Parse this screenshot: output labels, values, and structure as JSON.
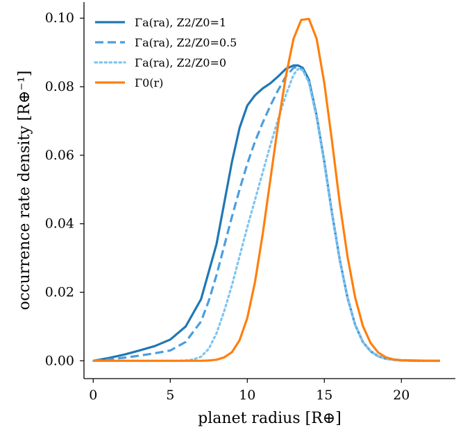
{
  "chart_data": {
    "type": "line",
    "xlabel": "planet radius [R⊕]",
    "ylabel": "occurrence rate density [R⊕⁻¹]",
    "xlim": [
      -0.6,
      23.5
    ],
    "ylim": [
      -0.0052,
      0.1047
    ],
    "xticks": [
      0,
      5,
      10,
      15,
      20
    ],
    "xtick_labels": [
      "0",
      "5",
      "10",
      "15",
      "20"
    ],
    "yticks": [
      0.0,
      0.02,
      0.04,
      0.06,
      0.08,
      0.1
    ],
    "ytick_labels": [
      "0.00",
      "0.02",
      "0.04",
      "0.06",
      "0.08",
      "0.10"
    ],
    "grid": false,
    "legend_position": "upper-left",
    "series": [
      {
        "name": "Γa(ra), Z2/Z0=1",
        "color": "#1f77b4",
        "style": "solid",
        "x": [
          0,
          1,
          2,
          3,
          4,
          5,
          6,
          7,
          8,
          8.5,
          9,
          9.5,
          10,
          10.5,
          11,
          11.5,
          12,
          12.5,
          13,
          13.3,
          13.6,
          14,
          14.5,
          15,
          15.5,
          16,
          16.5,
          17,
          17.5,
          18,
          18.5,
          19,
          19.5,
          20,
          21,
          22,
          22.5
        ],
        "y": [
          0.0,
          0.0008,
          0.0018,
          0.003,
          0.0043,
          0.0062,
          0.01,
          0.018,
          0.034,
          0.046,
          0.058,
          0.068,
          0.0745,
          0.0775,
          0.0795,
          0.081,
          0.083,
          0.0852,
          0.0862,
          0.0862,
          0.0855,
          0.082,
          0.0715,
          0.058,
          0.043,
          0.0295,
          0.0185,
          0.0105,
          0.0055,
          0.0028,
          0.0013,
          0.0006,
          0.0003,
          0.0001,
          0.0,
          0.0,
          0.0
        ]
      },
      {
        "name": "Γa(ra), Z2/Z0=0.5",
        "color": "#4a9ee0",
        "style": "dashed",
        "x": [
          0,
          1,
          2,
          3,
          4,
          5,
          6,
          7,
          7.5,
          8,
          8.5,
          9,
          9.5,
          10,
          10.5,
          11,
          11.5,
          12,
          12.5,
          13,
          13.3,
          13.6,
          14,
          14.5,
          15,
          15.5,
          16,
          16.5,
          17,
          17.5,
          18,
          18.5,
          19,
          19.5,
          20,
          21,
          22,
          22.5
        ],
        "y": [
          0.0,
          0.0004,
          0.0009,
          0.0015,
          0.0022,
          0.003,
          0.0055,
          0.0115,
          0.0175,
          0.025,
          0.0335,
          0.042,
          0.05,
          0.0575,
          0.064,
          0.0695,
          0.0745,
          0.079,
          0.083,
          0.0855,
          0.0858,
          0.085,
          0.0815,
          0.0712,
          0.0578,
          0.0428,
          0.0294,
          0.0184,
          0.0105,
          0.0055,
          0.0028,
          0.0013,
          0.0006,
          0.0003,
          0.0001,
          0.0,
          0.0,
          0.0
        ]
      },
      {
        "name": "Γa(ra), Z2/Z0=0",
        "color": "#7fc4f0",
        "style": "dotted",
        "x": [
          0,
          1,
          2,
          3,
          4,
          5,
          5.5,
          6,
          6.5,
          7,
          7.5,
          8,
          8.5,
          9,
          9.5,
          10,
          10.5,
          11,
          11.5,
          12,
          12.5,
          13,
          13.3,
          13.6,
          14,
          14.5,
          15,
          15.5,
          16,
          16.5,
          17,
          17.5,
          18,
          18.5,
          19,
          19.5,
          20,
          21,
          22,
          22.5
        ],
        "y": [
          0,
          0,
          0,
          0,
          0,
          0,
          0,
          0.0001,
          0.0004,
          0.0012,
          0.0035,
          0.008,
          0.0145,
          0.022,
          0.0305,
          0.039,
          0.047,
          0.055,
          0.063,
          0.0705,
          0.0775,
          0.0835,
          0.0852,
          0.0848,
          0.0812,
          0.071,
          0.0576,
          0.0427,
          0.0293,
          0.0184,
          0.0105,
          0.0055,
          0.0028,
          0.0013,
          0.0006,
          0.0003,
          0.0001,
          0.0,
          0.0,
          0.0
        ]
      },
      {
        "name": "Γ0(r)",
        "color": "#ff7f0e",
        "style": "solid",
        "x": [
          0,
          5,
          6,
          7,
          7.5,
          8,
          8.5,
          9,
          9.5,
          10,
          10.5,
          11,
          11.5,
          12,
          12.5,
          13,
          13.5,
          14,
          14.5,
          15,
          15.5,
          16,
          16.5,
          17,
          17.5,
          18,
          18.5,
          19,
          19.5,
          20,
          21,
          22,
          22.5
        ],
        "y": [
          0,
          0,
          0,
          0,
          0.0001,
          0.0003,
          0.001,
          0.0025,
          0.006,
          0.0125,
          0.023,
          0.037,
          0.053,
          0.069,
          0.083,
          0.094,
          0.0995,
          0.0998,
          0.094,
          0.081,
          0.064,
          0.046,
          0.0305,
          0.0185,
          0.0102,
          0.0052,
          0.0024,
          0.001,
          0.0004,
          0.0002,
          0.0001,
          0.0,
          0.0
        ]
      }
    ]
  }
}
